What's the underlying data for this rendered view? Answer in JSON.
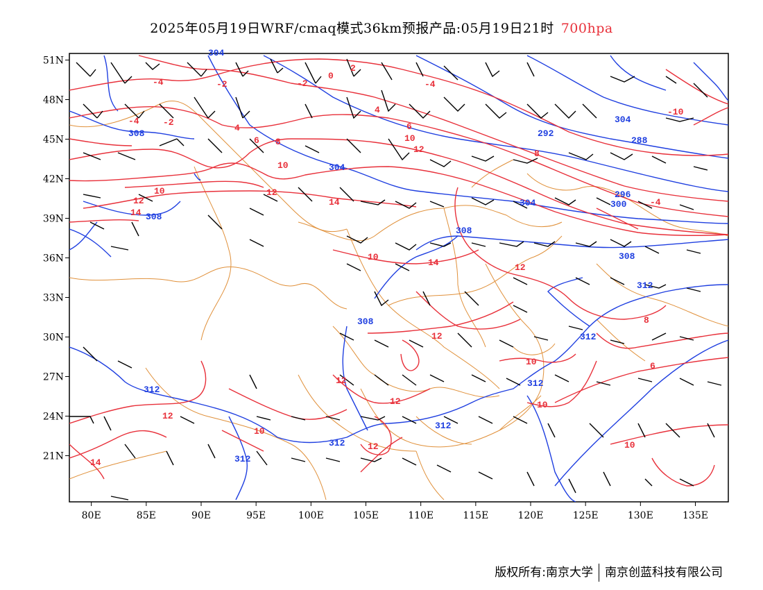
{
  "title": {
    "main": "2025年05月19日WRF/cmaq模式36km预报产品:05月19日21时",
    "level": "700hpa",
    "level_color": "#e8303a"
  },
  "map": {
    "lat_labels": [
      "51N",
      "48N",
      "45N",
      "42N",
      "39N",
      "36N",
      "33N",
      "30N",
      "27N",
      "24N",
      "21N"
    ],
    "lat_values": [
      51,
      48,
      45,
      42,
      39,
      36,
      33,
      30,
      27,
      24,
      21
    ],
    "lon_labels": [
      "80E",
      "85E",
      "90E",
      "95E",
      "100E",
      "105E",
      "110E",
      "115E",
      "120E",
      "125E",
      "130E",
      "135E"
    ],
    "lon_values": [
      80,
      85,
      90,
      95,
      100,
      105,
      110,
      115,
      120,
      125,
      130,
      135
    ],
    "lon_range": [
      78,
      138
    ],
    "lat_range": [
      17.5,
      51.5
    ],
    "colors": {
      "temperature": "#e8303a",
      "geopotential": "#1f3fe0",
      "boundaries": "#e0903a",
      "wind_barbs": "#000000"
    },
    "temperature_labels": [
      "-4",
      "-2",
      "-2",
      "-4",
      "-2",
      "0",
      "2",
      "-4",
      "4",
      "4",
      "6",
      "6",
      "8",
      "10",
      "10",
      "12",
      "8",
      "10",
      "12",
      "14",
      "12",
      "14",
      "14",
      "12",
      "12",
      "10",
      "12",
      "10",
      "12",
      "12",
      "10",
      "14",
      "12",
      "10",
      "10",
      "8",
      "6",
      "-10",
      "-4"
    ],
    "geopotential_labels": [
      "308",
      "308",
      "304",
      "304",
      "292",
      "288",
      "296",
      "300",
      "304",
      "308",
      "308",
      "308",
      "312",
      "312",
      "312",
      "312",
      "312",
      "312",
      "312",
      "304"
    ]
  },
  "footer": {
    "left": "版权所有:南京大学",
    "right": "南京创蓝科技有限公司"
  }
}
